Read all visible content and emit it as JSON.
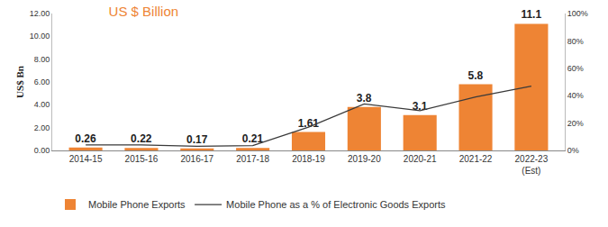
{
  "chart_data": {
    "type": "bar",
    "title": "US $ Billion",
    "y_label": "US$ Bn",
    "categories": [
      "2014-15",
      "2015-16",
      "2016-17",
      "2017-18",
      "2018-19",
      "2019-20",
      "2020-21",
      "2021-22",
      "2022-23 (Est)"
    ],
    "series": [
      {
        "name": "Mobile Phone Exports",
        "type": "bar",
        "color": "#ee8434",
        "data_labels": true,
        "values": [
          0.26,
          0.22,
          0.17,
          0.21,
          1.61,
          3.8,
          3.1,
          5.8,
          11.1
        ]
      },
      {
        "name": "Mobile Phone as a % of Electronic Goods Exports",
        "type": "line",
        "color": "#3a3a3a",
        "line_style": "solid",
        "axis": "y2",
        "values": [
          4,
          4,
          3,
          3.5,
          17,
          34,
          29,
          39,
          47
        ]
      }
    ],
    "ylim": [
      0,
      12
    ],
    "yticks": [
      {
        "value": 0,
        "label": "0.00"
      },
      {
        "value": 2,
        "label": "2.00"
      },
      {
        "value": 4,
        "label": "4.00"
      },
      {
        "value": 6,
        "label": "6.00"
      },
      {
        "value": 8,
        "label": "8.00"
      },
      {
        "value": 10,
        "label": "10.00"
      },
      {
        "value": 12,
        "label": "12.00"
      }
    ],
    "y2lim": [
      0,
      100
    ],
    "y2ticks": [
      {
        "value": 0,
        "label": "0%"
      },
      {
        "value": 20,
        "label": "20%"
      },
      {
        "value": 40,
        "label": "40%"
      },
      {
        "value": 60,
        "label": "60%"
      },
      {
        "value": 80,
        "label": "80%"
      },
      {
        "value": 100,
        "label": "100%"
      }
    ],
    "grid": false,
    "legend": "bottom"
  }
}
